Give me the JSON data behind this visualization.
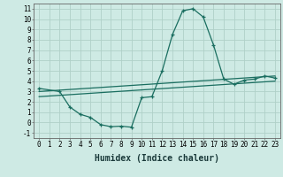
{
  "xlabel": "Humidex (Indice chaleur)",
  "ylabel": "",
  "background_color": "#ceeae4",
  "grid_color": "#b0d0c8",
  "line_color": "#1a6e60",
  "xlim": [
    -0.5,
    23.5
  ],
  "ylim": [
    -1.5,
    11.5
  ],
  "xticks": [
    0,
    1,
    2,
    3,
    4,
    5,
    6,
    7,
    8,
    9,
    10,
    11,
    12,
    13,
    14,
    15,
    16,
    17,
    18,
    19,
    20,
    21,
    22,
    23
  ],
  "yticks": [
    -1,
    0,
    1,
    2,
    3,
    4,
    5,
    6,
    7,
    8,
    9,
    10,
    11
  ],
  "curve1_x": [
    0,
    2,
    3,
    4,
    5,
    6,
    7,
    8,
    9,
    10,
    11,
    12,
    13,
    14,
    15,
    16,
    17,
    18,
    19,
    20,
    21,
    22,
    23
  ],
  "curve1_y": [
    3.3,
    3.0,
    1.5,
    0.8,
    0.5,
    -0.2,
    -0.4,
    -0.35,
    -0.45,
    2.4,
    2.5,
    5.0,
    8.5,
    10.8,
    11.0,
    10.2,
    7.5,
    4.2,
    3.7,
    4.1,
    4.2,
    4.5,
    4.3
  ],
  "line2_x": [
    0,
    23
  ],
  "line2_y": [
    3.0,
    4.5
  ],
  "line3_x": [
    0,
    23
  ],
  "line3_y": [
    2.5,
    4.0
  ],
  "tick_fontsize": 5.5,
  "label_fontsize": 7
}
